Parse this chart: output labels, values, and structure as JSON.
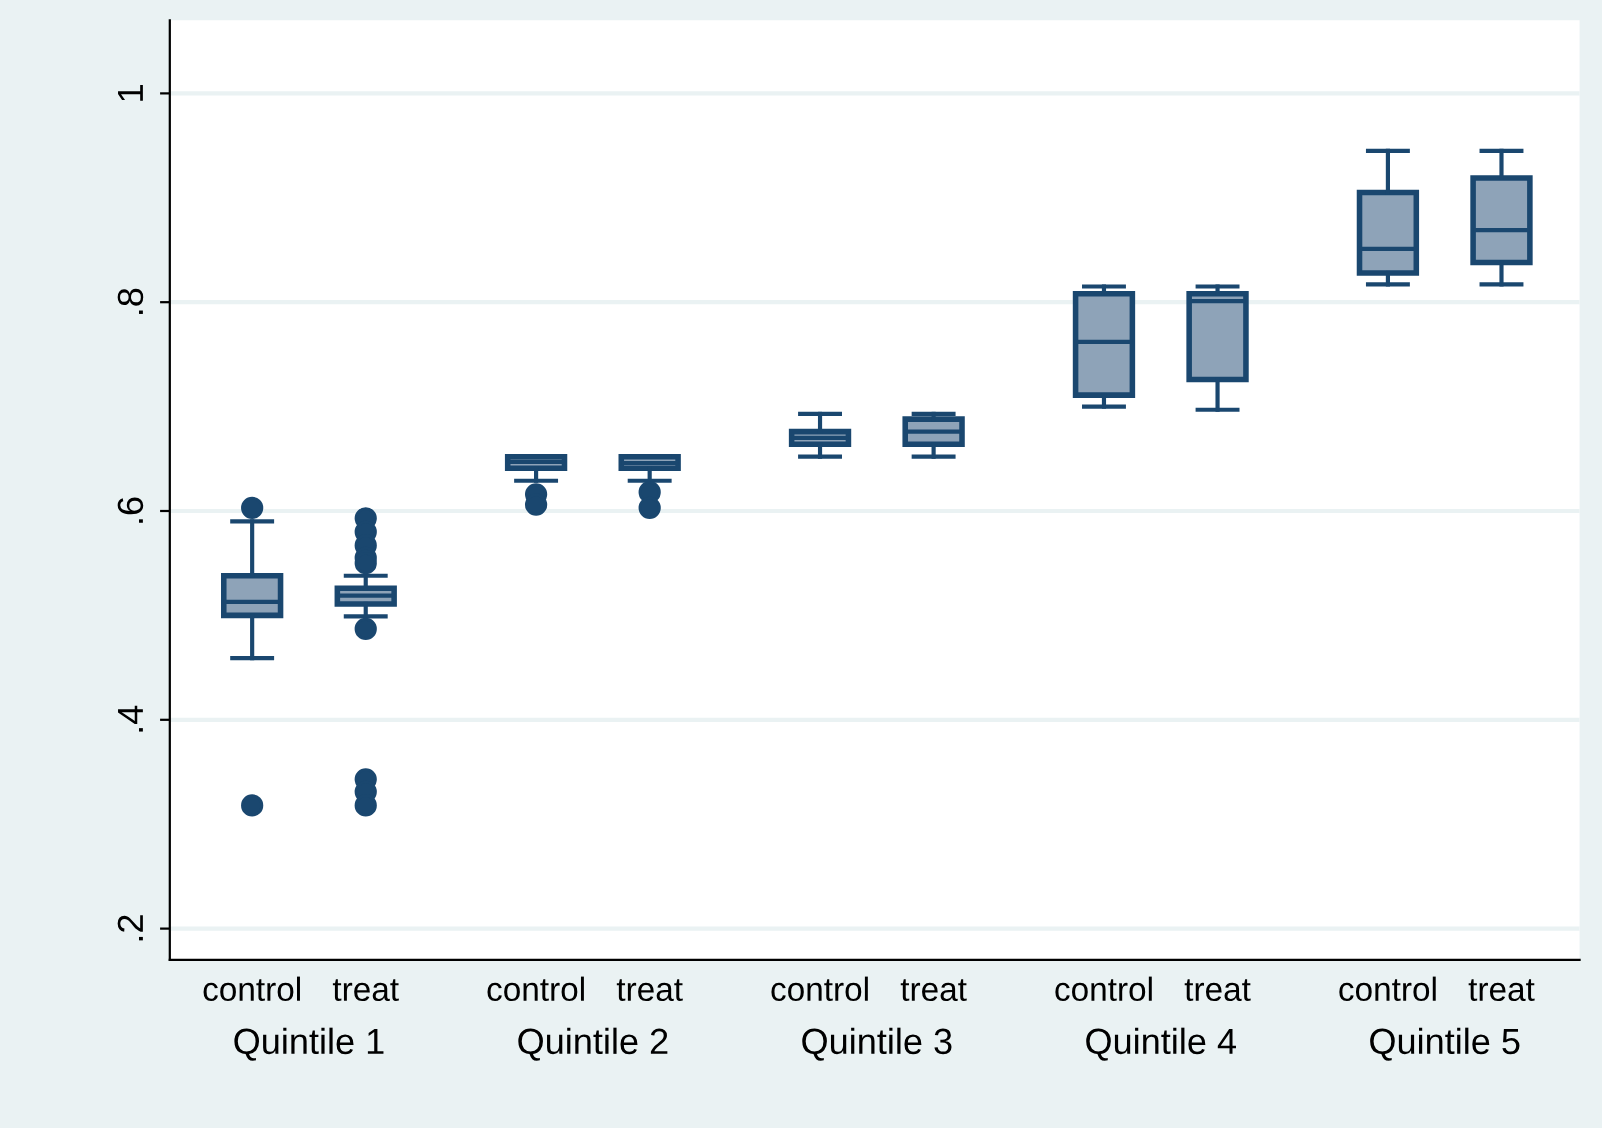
{
  "chart_data": {
    "type": "box",
    "categories": [
      "control",
      "treat",
      "control",
      "treat",
      "control",
      "treat",
      "control",
      "treat",
      "control",
      "treat"
    ],
    "color": "#8ea3b8",
    "boxes": [
      {
        "low": 0.459,
        "q1": 0.5,
        "median": 0.513,
        "q3": 0.538,
        "high": 0.59,
        "outliers": [
          0.603,
          0.318
        ]
      },
      {
        "low": 0.499,
        "q1": 0.511,
        "median": 0.519,
        "q3": 0.526,
        "high": 0.538,
        "outliers": [
          0.593,
          0.58,
          0.567,
          0.555,
          0.55,
          0.487,
          0.343,
          0.331,
          0.318
        ]
      },
      {
        "low": 0.629,
        "q1": 0.641,
        "median": 0.647,
        "q3": 0.652,
        "high": 0.652,
        "outliers": [
          0.616,
          0.606
        ]
      },
      {
        "low": 0.629,
        "q1": 0.641,
        "median": 0.646,
        "q3": 0.652,
        "high": 0.652,
        "outliers": [
          0.618,
          0.603
        ]
      },
      {
        "low": 0.652,
        "q1": 0.664,
        "median": 0.67,
        "q3": 0.676,
        "high": 0.693
      },
      {
        "low": 0.652,
        "q1": 0.664,
        "median": 0.676,
        "q3": 0.688,
        "high": 0.693
      },
      {
        "low": 0.7,
        "q1": 0.711,
        "median": 0.762,
        "q3": 0.808,
        "high": 0.815
      },
      {
        "low": 0.697,
        "q1": 0.726,
        "median": 0.801,
        "q3": 0.808,
        "high": 0.815
      },
      {
        "low": 0.817,
        "q1": 0.828,
        "median": 0.851,
        "q3": 0.905,
        "high": 0.945
      },
      {
        "low": 0.817,
        "q1": 0.838,
        "median": 0.869,
        "q3": 0.919,
        "high": 0.945
      }
    ],
    "annotations": [
      "Quintile 1",
      "Quintile 2",
      "Quintile 3",
      "Quintile 4",
      "Quintile 5"
    ],
    "ylim": [
      0.17,
      1.07
    ],
    "yticks": [
      {
        "value": 0.2,
        "label": ".2"
      },
      {
        "value": 0.4,
        "label": ".4"
      },
      {
        "value": 0.6,
        "label": ".6"
      },
      {
        "value": 0.8,
        "label": ".8"
      },
      {
        "value": 1,
        "label": "1"
      }
    ],
    "grid": "y"
  }
}
